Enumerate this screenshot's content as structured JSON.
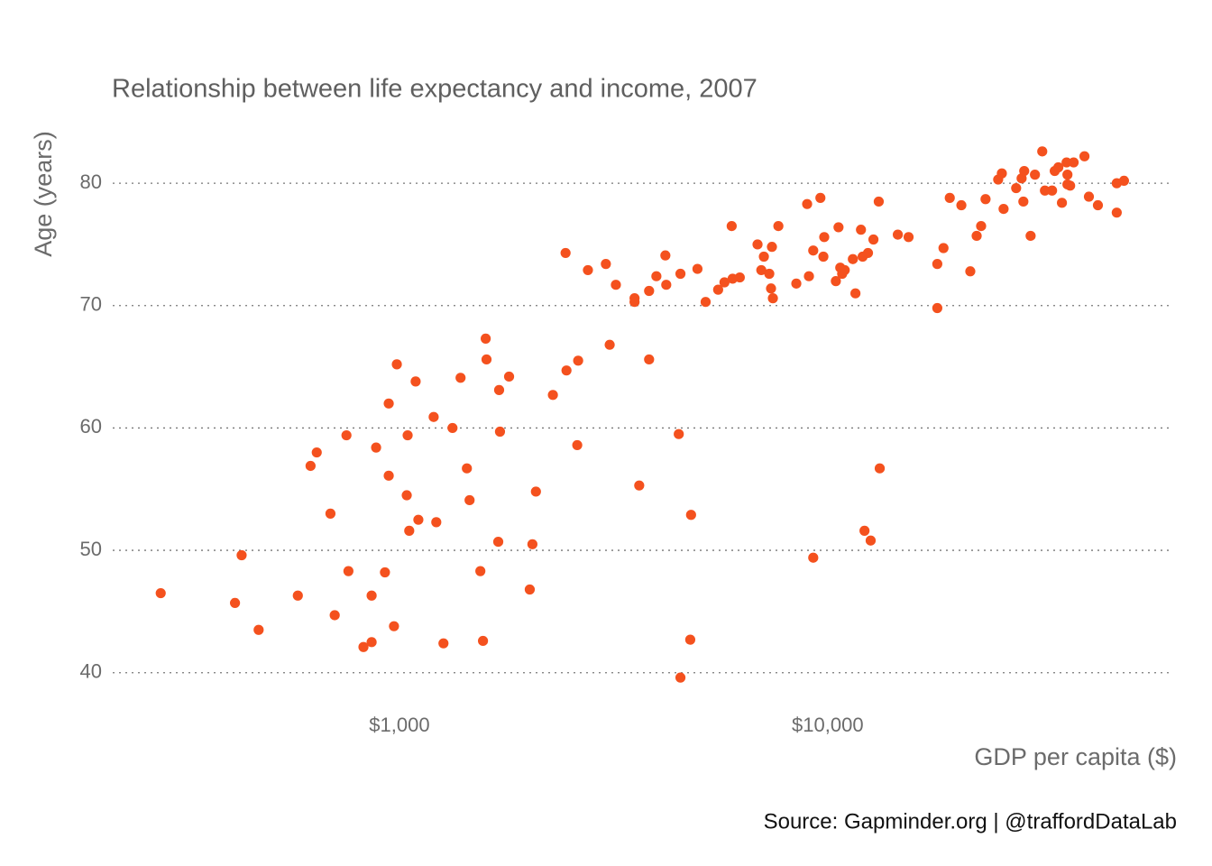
{
  "chart_data": {
    "type": "scatter",
    "title": "Relationship between life expectancy and income, 2007",
    "x_label": "GDP per capita ($)",
    "y_label": "Age (years)",
    "source": "Source: Gapminder.org  |  @traffordDataLab",
    "color": "#f4511e",
    "x_log": true,
    "grid": true,
    "xlim": [
      214,
      63800
    ],
    "ylim": [
      37.4,
      84.8
    ],
    "xticks": [
      {
        "value": 1000,
        "label": "$1,000"
      },
      {
        "value": 10000,
        "label": "$10,000"
      }
    ],
    "yticks": [
      40,
      50,
      60,
      70,
      80
    ],
    "x": [
      277,
      413,
      428,
      469,
      579,
      620,
      641,
      690,
      706,
      752,
      760,
      824,
      861,
      861,
      882,
      925,
      944,
      944,
      971,
      986,
      1040,
      1045,
      1054,
      1091,
      1107,
      1202,
      1219,
      1267,
      1330,
      1389,
      1437,
      1458,
      1545,
      1567,
      1590,
      1597,
      1701,
      1709,
      1717,
      1803,
      2015,
      2044,
      2083,
      2282,
      2443,
      2455,
      2601,
      2614,
      2755,
      3034,
      3097,
      3202,
      3540,
      3540,
      3630,
      3828,
      3828,
      3981,
      4178,
      4198,
      4490,
      4531,
      4531,
      4776,
      4797,
      4965,
      5188,
      5549,
      5741,
      5968,
      5998,
      6234,
      6858,
      6998,
      7096,
      7305,
      7374,
      7410,
      7448,
      7671,
      8448,
      8954,
      9041,
      9253,
      9253,
      9616,
      9772,
      9816,
      10450,
      10600,
      10700,
      10810,
      10960,
      11450,
      11610,
      11960,
      12070,
      12190,
      12420,
      12600,
      12790,
      13160,
      13230,
      14580,
      15450,
      18030,
      18030,
      18640,
      19280,
      20520,
      21530,
      22280,
      22820,
      23370,
      25010,
      25510,
      25750,
      27550,
      28370,
      28640,
      28770,
      30480,
      29780,
      31700,
      32160,
      33420,
      33900,
      34570,
      35240,
      36130,
      36300,
      36300,
      36830,
      37530,
      39780,
      40740,
      42760,
      47320,
      47320,
      49200
    ],
    "values": [
      46.5,
      45.7,
      49.6,
      43.5,
      46.3,
      56.9,
      58.0,
      53.0,
      44.7,
      59.4,
      48.3,
      42.1,
      42.5,
      46.3,
      58.4,
      48.2,
      62.0,
      56.1,
      43.8,
      65.2,
      54.5,
      59.4,
      51.6,
      63.8,
      52.5,
      60.9,
      52.3,
      42.4,
      60.0,
      64.1,
      56.7,
      54.1,
      48.3,
      42.6,
      67.3,
      65.6,
      50.7,
      63.1,
      59.7,
      64.2,
      46.8,
      50.5,
      54.8,
      62.7,
      74.3,
      64.7,
      58.6,
      65.5,
      72.9,
      73.4,
      66.8,
      71.7,
      70.6,
      70.3,
      55.3,
      71.2,
      65.6,
      72.4,
      74.1,
      71.7,
      59.5,
      72.6,
      39.6,
      42.7,
      52.9,
      73.0,
      70.3,
      71.3,
      71.9,
      76.5,
      72.2,
      72.3,
      75.0,
      72.9,
      74.0,
      72.6,
      71.4,
      74.8,
      70.6,
      76.5,
      71.8,
      78.3,
      72.4,
      49.4,
      74.5,
      78.8,
      74.0,
      75.6,
      72.0,
      76.4,
      73.1,
      72.6,
      72.9,
      73.8,
      71.0,
      76.2,
      74.0,
      51.6,
      74.3,
      50.8,
      75.4,
      78.5,
      56.7,
      75.8,
      75.6,
      69.8,
      73.4,
      74.7,
      78.8,
      78.2,
      72.8,
      75.7,
      76.5,
      78.7,
      80.3,
      80.8,
      77.9,
      79.6,
      80.4,
      78.5,
      81.0,
      80.7,
      75.7,
      82.6,
      79.4,
      79.4,
      81.0,
      81.3,
      78.4,
      81.7,
      80.7,
      79.9,
      79.8,
      81.7,
      82.2,
      78.9,
      78.2,
      80.0,
      77.6,
      80.2
    ]
  }
}
